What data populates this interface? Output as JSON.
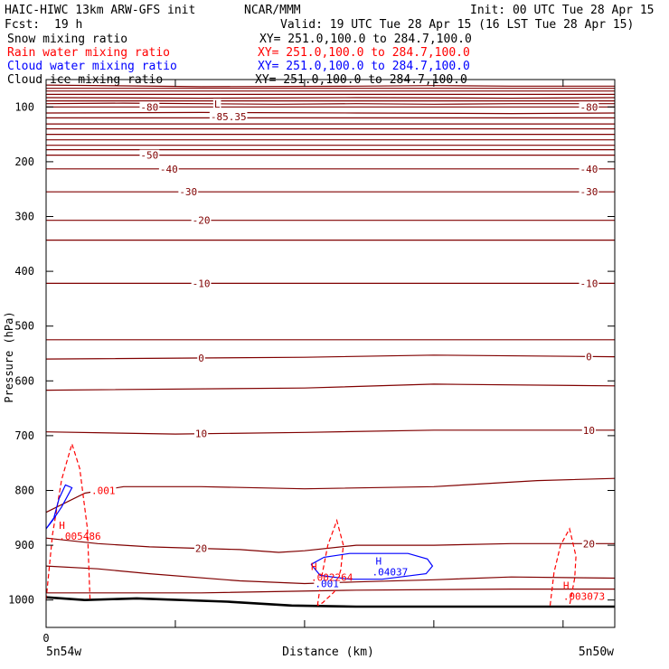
{
  "header": {
    "title_left": "HAIC-HIWC 13km ARW-GFS init",
    "title_center": "NCAR/MMM",
    "init": "Init: 00 UTC Tue 28 Apr 15",
    "fcst_label": "Fcst:",
    "fcst_value": "19 h",
    "valid": "Valid: 19 UTC Tue 28 Apr 15 (16 LST Tue 28 Apr 15)"
  },
  "fields": [
    {
      "name": "Snow mixing ratio",
      "xy": "XY= 251.0,100.0 to 284.7,100.0",
      "color": "#000000"
    },
    {
      "name": "Rain water mixing ratio",
      "xy": "XY= 251.0,100.0 to 284.7,100.0",
      "color": "#ff0000"
    },
    {
      "name": "Cloud water mixing ratio",
      "xy": "XY= 251.0,100.0 to 284.7,100.0",
      "color": "#0000ff"
    },
    {
      "name": "Cloud ice mixing ratio",
      "xy": "XY= 251.0,100.0 to 284.7,100.0",
      "color": "#000000"
    }
  ],
  "colors": {
    "temperature": "#800000",
    "rain": "#ff0000",
    "cloud_water": "#0000ff",
    "terrain": "#000000"
  },
  "chart_data": {
    "type": "line",
    "xlabel": "Distance (km)",
    "ylabel": "Pressure (hPa)",
    "xlim": [
      0,
      440
    ],
    "ylim": [
      1050,
      50
    ],
    "x_ticks": [
      0,
      100,
      200,
      300,
      400
    ],
    "x_tick_labels": [
      "0",
      "",
      "",
      "",
      ""
    ],
    "y_ticks": [
      100,
      200,
      300,
      400,
      500,
      600,
      700,
      800,
      900,
      1000
    ],
    "x_end_labels": {
      "left": "5n54w",
      "right": "5n50w"
    },
    "temperature_isotherms": [
      {
        "x": [
          0,
          120,
          240,
          300,
          360,
          440
        ],
        "p": [
          60,
          63,
          62,
          61,
          62,
          62
        ]
      },
      {
        "x": [
          0,
          440
        ],
        "p": [
          66,
          66
        ]
      },
      {
        "x": [
          0,
          440
        ],
        "p": [
          71,
          71
        ]
      },
      {
        "x": [
          0,
          440
        ],
        "p": [
          77,
          77
        ]
      },
      {
        "x": [
          0,
          120,
          240,
          360,
          440
        ],
        "p": [
          83,
          84,
          83,
          84,
          83
        ]
      },
      {
        "x": [
          0,
          440
        ],
        "p": [
          89,
          89
        ]
      },
      {
        "x": [
          0,
          60,
          120,
          180,
          240,
          300,
          360,
          440
        ],
        "p": [
          94,
          93,
          94,
          95,
          94,
          95,
          94,
          94
        ]
      },
      {
        "x": [
          0,
          440
        ],
        "p": [
          100,
          100
        ],
        "label": "-80",
        "label_x": [
          80,
          420
        ]
      },
      {
        "x": [
          0,
          120,
          240,
          360,
          440
        ],
        "p": [
          111,
          110,
          111,
          112,
          111
        ]
      },
      {
        "x": [
          0,
          440
        ],
        "p": [
          120,
          120
        ]
      },
      {
        "x": [
          0,
          440
        ],
        "p": [
          131,
          131
        ]
      },
      {
        "x": [
          0,
          440
        ],
        "p": [
          140,
          140
        ]
      },
      {
        "x": [
          0,
          440
        ],
        "p": [
          150,
          150
        ]
      },
      {
        "x": [
          0,
          440
        ],
        "p": [
          160,
          160
        ]
      },
      {
        "x": [
          0,
          440
        ],
        "p": [
          170,
          170
        ]
      },
      {
        "x": [
          0,
          440
        ],
        "p": [
          178,
          178
        ]
      },
      {
        "x": [
          0,
          440
        ],
        "p": [
          188,
          188
        ],
        "label": "-50",
        "label_x": [
          80
        ]
      },
      {
        "x": [
          0,
          440
        ],
        "p": [
          213,
          213
        ],
        "label": "-40",
        "label_x": [
          95,
          420
        ]
      },
      {
        "x": [
          0,
          440
        ],
        "p": [
          255,
          255
        ],
        "label": "-30",
        "label_x": [
          110,
          420
        ]
      },
      {
        "x": [
          0,
          440
        ],
        "p": [
          307,
          307
        ],
        "label": "-20",
        "label_x": [
          120
        ]
      },
      {
        "x": [
          0,
          440
        ],
        "p": [
          343,
          343
        ]
      },
      {
        "x": [
          0,
          440
        ],
        "p": [
          422,
          422
        ],
        "label": "-10",
        "label_x": [
          120,
          420
        ]
      },
      {
        "x": [
          0,
          250,
          440
        ],
        "p": [
          525,
          525,
          525
        ]
      },
      {
        "x": [
          0,
          200,
          300,
          440
        ],
        "p": [
          560,
          557,
          553,
          556
        ],
        "label": "0",
        "label_x": [
          120,
          420
        ]
      },
      {
        "x": [
          0,
          200,
          300,
          440
        ],
        "p": [
          617,
          613,
          606,
          609
        ]
      },
      {
        "x": [
          0,
          100,
          200,
          300,
          440
        ],
        "p": [
          693,
          697,
          694,
          690,
          690
        ],
        "label": "10",
        "label_x": [
          120,
          420
        ]
      },
      {
        "x": [
          0,
          30,
          60,
          120,
          200,
          300,
          380,
          440
        ],
        "p": [
          840,
          805,
          793,
          793,
          797,
          793,
          782,
          778
        ]
      },
      {
        "x": [
          0,
          40,
          80,
          150,
          180,
          200,
          240,
          300,
          360,
          440
        ],
        "p": [
          887,
          897,
          903,
          908,
          913,
          910,
          900,
          900,
          897,
          897
        ],
        "label": "20",
        "label_x": [
          120,
          420
        ]
      },
      {
        "x": [
          0,
          40,
          80,
          150,
          200,
          240,
          300,
          360,
          440
        ],
        "p": [
          938,
          943,
          952,
          965,
          970,
          967,
          963,
          958,
          960
        ]
      },
      {
        "x": [
          0,
          120,
          240,
          360,
          440
        ],
        "p": [
          987,
          987,
          982,
          980,
          980
        ]
      }
    ],
    "terrain": {
      "x": [
        0,
        30,
        70,
        140,
        190,
        240,
        300,
        360,
        440
      ],
      "p": [
        995,
        1000,
        997,
        1003,
        1010,
        1012,
        1012,
        1012,
        1012
      ]
    },
    "rain_contours": [
      {
        "x": [
          0,
          5,
          12,
          20,
          26,
          32,
          34
        ],
        "p": [
          1000,
          880,
          780,
          715,
          760,
          870,
          1000
        ],
        "label": ".001",
        "label_x": 35,
        "label_p": 800
      },
      {
        "x": [
          210,
          213,
          218,
          225,
          230,
          228,
          223,
          214,
          210
        ],
        "p": [
          1010,
          960,
          900,
          855,
          900,
          945,
          985,
          1005,
          1010
        ]
      },
      {
        "x": [
          390,
          393,
          398,
          405,
          410,
          409,
          405
        ],
        "p": [
          1010,
          950,
          900,
          870,
          920,
          960,
          1010
        ]
      }
    ],
    "rain_maxima": [
      {
        "label": "H",
        "value": ".005486",
        "x": 10,
        "p": 870
      },
      {
        "label": "H",
        "value": ".002264",
        "x": 205,
        "p": 945
      },
      {
        "label": "H",
        "value": ".003073",
        "x": 400,
        "p": 980
      }
    ],
    "cloud_water_contours": [
      {
        "x": [
          0,
          5,
          12,
          20,
          15,
          10,
          6,
          0
        ],
        "p": [
          870,
          855,
          830,
          795,
          790,
          815,
          850,
          870
        ]
      },
      {
        "x": [
          205,
          215,
          235,
          260,
          280,
          295,
          299,
          294,
          260,
          235,
          212,
          205
        ],
        "p": [
          935,
          922,
          915,
          915,
          915,
          925,
          938,
          952,
          962,
          962,
          955,
          935
        ],
        "label": ".001",
        "label_x": 208,
        "label_p": 970
      }
    ],
    "cloud_water_maxima": [
      {
        "label": "H",
        "value": ".04037",
        "x": 255,
        "p": 945
      }
    ],
    "minima": [
      {
        "label": "L",
        "value": "-85.35",
        "x": 130,
        "p": 88
      }
    ],
    "grid": false,
    "legend": "top-left"
  }
}
